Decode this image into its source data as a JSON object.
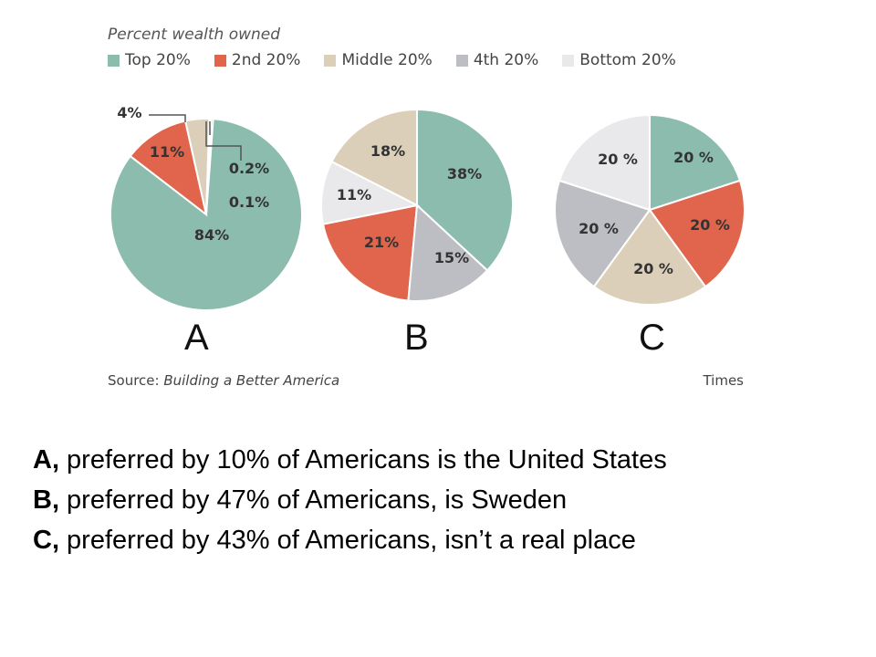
{
  "legend": {
    "title": "Percent wealth owned",
    "items": [
      {
        "label": "Top 20%",
        "color": "#8bbcad"
      },
      {
        "label": "2nd 20%",
        "color": "#e0654c"
      },
      {
        "label": "Middle 20%",
        "color": "#dccfb9"
      },
      {
        "label": "4th 20%",
        "color": "#bdbec3"
      },
      {
        "label": "Bottom 20%",
        "color": "#e9e9eb"
      }
    ]
  },
  "chart_data": [
    {
      "type": "pie",
      "name": "A",
      "categories": [
        "Top 20%",
        "2nd 20%",
        "Middle 20%",
        "4th 20%",
        "Bottom 20%"
      ],
      "values": [
        84,
        11,
        4,
        0.2,
        0.1
      ],
      "labels": [
        "84%",
        "11%",
        "4%",
        "0.2%",
        "0.1%"
      ]
    },
    {
      "type": "pie",
      "name": "B",
      "categories": [
        "Top 20%",
        "2nd 20%",
        "Middle 20%",
        "4th 20%",
        "Bottom 20%"
      ],
      "values": [
        38,
        21,
        18,
        15,
        11
      ],
      "labels": [
        "38%",
        "21%",
        "18%",
        "15%",
        "11%"
      ]
    },
    {
      "type": "pie",
      "name": "C",
      "categories": [
        "Top 20%",
        "2nd 20%",
        "Middle 20%",
        "4th 20%",
        "Bottom 20%"
      ],
      "values": [
        20,
        20,
        20,
        20,
        20
      ],
      "labels": [
        "20 %",
        "20 %",
        "20 %",
        "20 %",
        "20 %"
      ]
    }
  ],
  "source": {
    "prefix": "Source: ",
    "name": "Building a Better America"
  },
  "credit": "Times",
  "captions": [
    {
      "lead": "A,",
      "text": " preferred by 10% of Americans is the United States"
    },
    {
      "lead": "B,",
      "text": " preferred by 47% of Americans, is Sweden"
    },
    {
      "lead": "C,",
      "text": " preferred by 43% of Americans, isn’t a real place"
    }
  ]
}
